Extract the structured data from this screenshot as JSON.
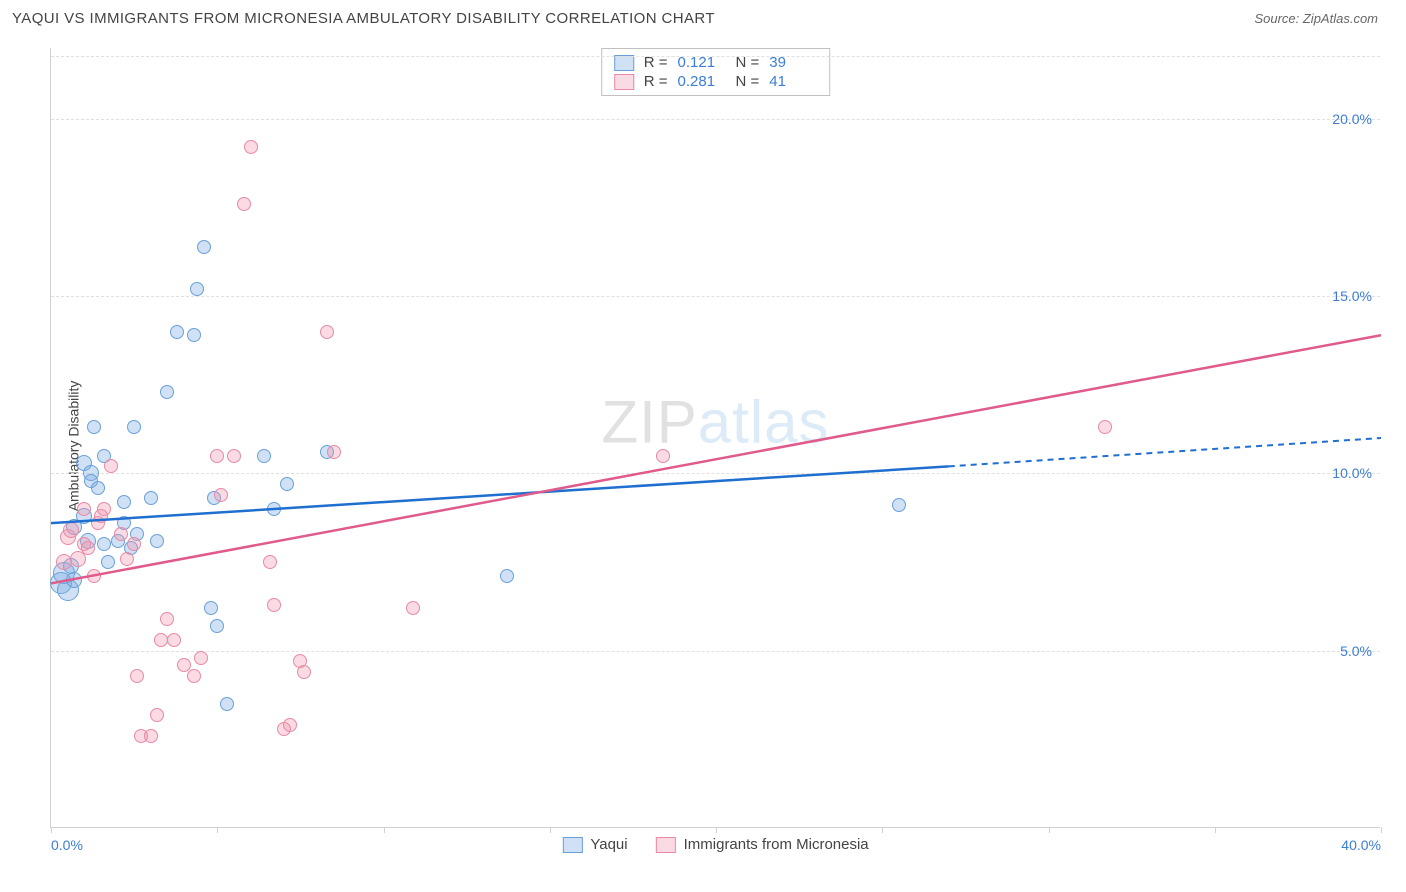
{
  "header": {
    "title": "YAQUI VS IMMIGRANTS FROM MICRONESIA AMBULATORY DISABILITY CORRELATION CHART",
    "source": "Source: ZipAtlas.com"
  },
  "chart": {
    "type": "scatter",
    "y_axis_label": "Ambulatory Disability",
    "watermark_a": "ZIP",
    "watermark_b": "atlas",
    "xlim": [
      0,
      40
    ],
    "ylim": [
      0,
      22
    ],
    "x_ticks": [
      0,
      5,
      10,
      15,
      20,
      25,
      30,
      35,
      40
    ],
    "x_tick_labels": {
      "0": "0.0%",
      "40": "40.0%"
    },
    "y_gridlines": [
      5,
      10,
      15,
      20
    ],
    "y_tick_labels": {
      "5": "5.0%",
      "10": "10.0%",
      "15": "15.0%",
      "20": "20.0%"
    },
    "grid_color": "#e0e0e0",
    "background_color": "#ffffff",
    "axis_color": "#d0d0d0",
    "label_color": "#3b7dd8",
    "series": [
      {
        "name": "Yaqui",
        "color_fill": "rgba(120,170,225,0.35)",
        "color_stroke": "#6aa0d8",
        "line_color": "#1f6fd0",
        "trend": {
          "x1": 0,
          "y1": 8.6,
          "x2": 27,
          "y2": 10.2,
          "dash_to_x": 40,
          "dash_to_y": 11.0
        },
        "R": "0.121",
        "N": "39",
        "points": [
          {
            "x": 0.3,
            "y": 6.9,
            "r": 11
          },
          {
            "x": 0.4,
            "y": 7.2,
            "r": 11
          },
          {
            "x": 0.5,
            "y": 6.7,
            "r": 11
          },
          {
            "x": 0.6,
            "y": 7.4,
            "r": 8
          },
          {
            "x": 0.7,
            "y": 7.0,
            "r": 8
          },
          {
            "x": 0.7,
            "y": 8.5,
            "r": 8
          },
          {
            "x": 1.0,
            "y": 10.3,
            "r": 8
          },
          {
            "x": 1.2,
            "y": 10.0,
            "r": 8
          },
          {
            "x": 1.2,
            "y": 9.8,
            "r": 7
          },
          {
            "x": 1.0,
            "y": 8.8,
            "r": 8
          },
          {
            "x": 1.1,
            "y": 8.1,
            "r": 8
          },
          {
            "x": 1.3,
            "y": 11.3,
            "r": 7
          },
          {
            "x": 1.4,
            "y": 9.6,
            "r": 7
          },
          {
            "x": 1.6,
            "y": 8.0,
            "r": 7
          },
          {
            "x": 1.6,
            "y": 10.5,
            "r": 7
          },
          {
            "x": 1.7,
            "y": 7.5,
            "r": 7
          },
          {
            "x": 2.0,
            "y": 8.1,
            "r": 7
          },
          {
            "x": 2.2,
            "y": 9.2,
            "r": 7
          },
          {
            "x": 2.2,
            "y": 8.6,
            "r": 7
          },
          {
            "x": 2.5,
            "y": 11.3,
            "r": 7
          },
          {
            "x": 2.4,
            "y": 7.9,
            "r": 7
          },
          {
            "x": 2.6,
            "y": 8.3,
            "r": 7
          },
          {
            "x": 3.0,
            "y": 9.3,
            "r": 7
          },
          {
            "x": 3.2,
            "y": 8.1,
            "r": 7
          },
          {
            "x": 3.5,
            "y": 12.3,
            "r": 7
          },
          {
            "x": 3.8,
            "y": 14.0,
            "r": 7
          },
          {
            "x": 4.3,
            "y": 13.9,
            "r": 7
          },
          {
            "x": 4.4,
            "y": 15.2,
            "r": 7
          },
          {
            "x": 4.6,
            "y": 16.4,
            "r": 7
          },
          {
            "x": 4.9,
            "y": 9.3,
            "r": 7
          },
          {
            "x": 4.8,
            "y": 6.2,
            "r": 7
          },
          {
            "x": 5.0,
            "y": 5.7,
            "r": 7
          },
          {
            "x": 5.3,
            "y": 3.5,
            "r": 7
          },
          {
            "x": 6.4,
            "y": 10.5,
            "r": 7
          },
          {
            "x": 6.7,
            "y": 9.0,
            "r": 7
          },
          {
            "x": 7.1,
            "y": 9.7,
            "r": 7
          },
          {
            "x": 8.3,
            "y": 10.6,
            "r": 7
          },
          {
            "x": 13.7,
            "y": 7.1,
            "r": 7
          },
          {
            "x": 25.5,
            "y": 9.1,
            "r": 7
          }
        ]
      },
      {
        "name": "Immigrants from Micronesia",
        "color_fill": "rgba(240,150,175,0.35)",
        "color_stroke": "#e88aa5",
        "line_color": "#e05a8c",
        "trend": {
          "x1": 0,
          "y1": 6.9,
          "x2": 40,
          "y2": 13.9
        },
        "R": "0.281",
        "N": "41",
        "points": [
          {
            "x": 0.4,
            "y": 7.5,
            "r": 8
          },
          {
            "x": 0.5,
            "y": 8.2,
            "r": 8
          },
          {
            "x": 0.6,
            "y": 8.4,
            "r": 8
          },
          {
            "x": 0.8,
            "y": 7.6,
            "r": 8
          },
          {
            "x": 1.0,
            "y": 8.0,
            "r": 7
          },
          {
            "x": 1.3,
            "y": 7.1,
            "r": 7
          },
          {
            "x": 1.1,
            "y": 7.9,
            "r": 7
          },
          {
            "x": 1.0,
            "y": 9.0,
            "r": 7
          },
          {
            "x": 1.4,
            "y": 8.6,
            "r": 7
          },
          {
            "x": 1.5,
            "y": 8.8,
            "r": 7
          },
          {
            "x": 1.6,
            "y": 9.0,
            "r": 7
          },
          {
            "x": 1.8,
            "y": 10.2,
            "r": 7
          },
          {
            "x": 2.1,
            "y": 8.3,
            "r": 7
          },
          {
            "x": 2.3,
            "y": 7.6,
            "r": 7
          },
          {
            "x": 2.5,
            "y": 8.0,
            "r": 7
          },
          {
            "x": 2.6,
            "y": 4.3,
            "r": 7
          },
          {
            "x": 2.7,
            "y": 2.6,
            "r": 7
          },
          {
            "x": 3.0,
            "y": 2.6,
            "r": 7
          },
          {
            "x": 3.2,
            "y": 3.2,
            "r": 7
          },
          {
            "x": 3.3,
            "y": 5.3,
            "r": 7
          },
          {
            "x": 3.5,
            "y": 5.9,
            "r": 7
          },
          {
            "x": 3.7,
            "y": 5.3,
            "r": 7
          },
          {
            "x": 4.0,
            "y": 4.6,
            "r": 7
          },
          {
            "x": 4.3,
            "y": 4.3,
            "r": 7
          },
          {
            "x": 4.5,
            "y": 4.8,
            "r": 7
          },
          {
            "x": 5.0,
            "y": 10.5,
            "r": 7
          },
          {
            "x": 5.1,
            "y": 9.4,
            "r": 7
          },
          {
            "x": 5.5,
            "y": 10.5,
            "r": 7
          },
          {
            "x": 5.8,
            "y": 17.6,
            "r": 7
          },
          {
            "x": 6.0,
            "y": 19.2,
            "r": 7
          },
          {
            "x": 6.6,
            "y": 7.5,
            "r": 7
          },
          {
            "x": 6.7,
            "y": 6.3,
            "r": 7
          },
          {
            "x": 7.0,
            "y": 2.8,
            "r": 7
          },
          {
            "x": 7.2,
            "y": 2.9,
            "r": 7
          },
          {
            "x": 7.5,
            "y": 4.7,
            "r": 7
          },
          {
            "x": 7.6,
            "y": 4.4,
            "r": 7
          },
          {
            "x": 8.3,
            "y": 14.0,
            "r": 7
          },
          {
            "x": 8.5,
            "y": 10.6,
            "r": 7
          },
          {
            "x": 10.9,
            "y": 6.2,
            "r": 7
          },
          {
            "x": 18.4,
            "y": 10.5,
            "r": 7
          },
          {
            "x": 31.7,
            "y": 11.3,
            "r": 7
          }
        ]
      }
    ]
  },
  "legend": {
    "s1": "Yaqui",
    "s2": "Immigrants from Micronesia"
  }
}
